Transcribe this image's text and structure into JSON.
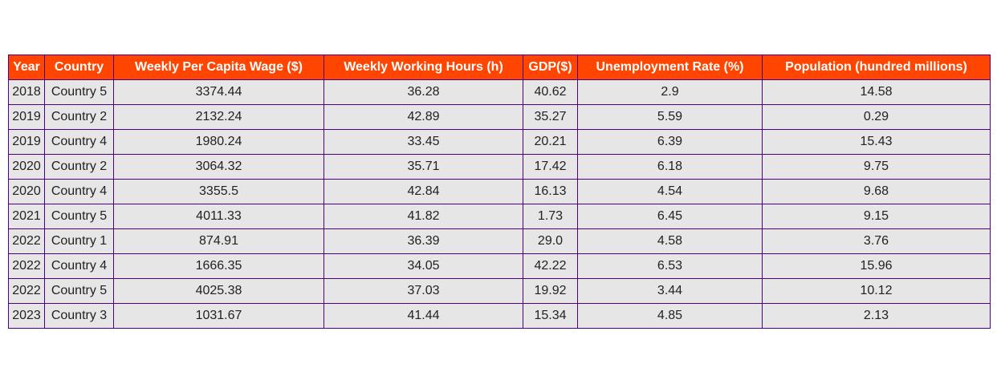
{
  "colors": {
    "header_bg": "#ff4500",
    "header_text": "#ffffff",
    "cell_bg": "#e6e6e6",
    "border": "#4b0082",
    "cell_text": "#222222"
  },
  "chart_data": {
    "type": "table",
    "columns": [
      "Year",
      "Country",
      "Weekly Per Capita Wage ($)",
      "Weekly Working Hours (h)",
      "GDP($)",
      "Unemployment Rate (%)",
      "Population (hundred millions)"
    ],
    "rows": [
      [
        "2018",
        "Country 5",
        "3374.44",
        "36.28",
        "40.62",
        "2.9",
        "14.58"
      ],
      [
        "2019",
        "Country 2",
        "2132.24",
        "42.89",
        "35.27",
        "5.59",
        "0.29"
      ],
      [
        "2019",
        "Country 4",
        "1980.24",
        "33.45",
        "20.21",
        "6.39",
        "15.43"
      ],
      [
        "2020",
        "Country 2",
        "3064.32",
        "35.71",
        "17.42",
        "6.18",
        "9.75"
      ],
      [
        "2020",
        "Country 4",
        "3355.5",
        "42.84",
        "16.13",
        "4.54",
        "9.68"
      ],
      [
        "2021",
        "Country 5",
        "4011.33",
        "41.82",
        "1.73",
        "6.45",
        "9.15"
      ],
      [
        "2022",
        "Country 1",
        "874.91",
        "36.39",
        "29.0",
        "4.58",
        "3.76"
      ],
      [
        "2022",
        "Country 4",
        "1666.35",
        "34.05",
        "42.22",
        "6.53",
        "15.96"
      ],
      [
        "2022",
        "Country 5",
        "4025.38",
        "37.03",
        "19.92",
        "3.44",
        "10.12"
      ],
      [
        "2023",
        "Country 3",
        "1031.67",
        "41.44",
        "15.34",
        "4.85",
        "2.13"
      ]
    ]
  }
}
